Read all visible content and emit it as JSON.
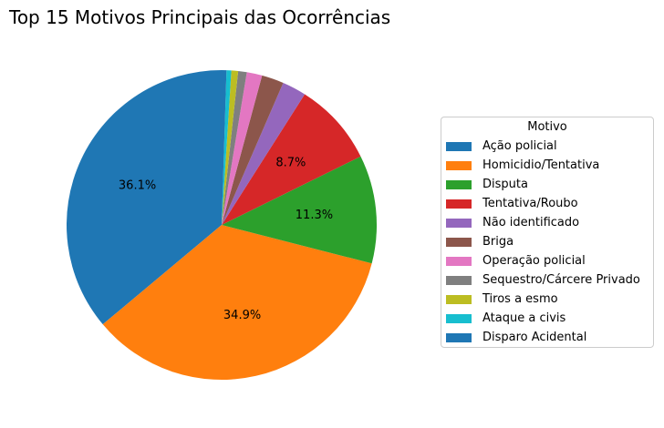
{
  "chart_data": {
    "type": "pie",
    "title": "Top 15 Motivos Principais das Ocorrências",
    "legend_title": "Motivo",
    "legend_position": "right",
    "start_angle_deg": 90,
    "direction": "counterclockwise",
    "slices": [
      {
        "label": "Ação policial",
        "value": 36.1,
        "color": "#1f77b4",
        "pct_label": "36.1%"
      },
      {
        "label": "Homicidio/Tentativa",
        "value": 34.9,
        "color": "#ff7f0e",
        "pct_label": "34.9%"
      },
      {
        "label": "Disputa",
        "value": 11.3,
        "color": "#2ca02c",
        "pct_label": "11.3%"
      },
      {
        "label": "Tentativa/Roubo",
        "value": 8.7,
        "color": "#d62728",
        "pct_label": "8.7%"
      },
      {
        "label": "Não identificado",
        "value": 2.5,
        "color": "#9467bd",
        "pct_label": ""
      },
      {
        "label": "Briga",
        "value": 2.3,
        "color": "#8c564b",
        "pct_label": ""
      },
      {
        "label": "Operação policial",
        "value": 1.6,
        "color": "#e377c2",
        "pct_label": ""
      },
      {
        "label": "Sequestro/Cárcere Privado",
        "value": 0.9,
        "color": "#7f7f7f",
        "pct_label": ""
      },
      {
        "label": "Tiros a esmo",
        "value": 0.7,
        "color": "#bcbd22",
        "pct_label": ""
      },
      {
        "label": "Ataque a civis",
        "value": 0.5,
        "color": "#17becf",
        "pct_label": ""
      },
      {
        "label": "Disparo Acidental",
        "value": 0.5,
        "color": "#1f77b4",
        "pct_label": ""
      }
    ]
  }
}
